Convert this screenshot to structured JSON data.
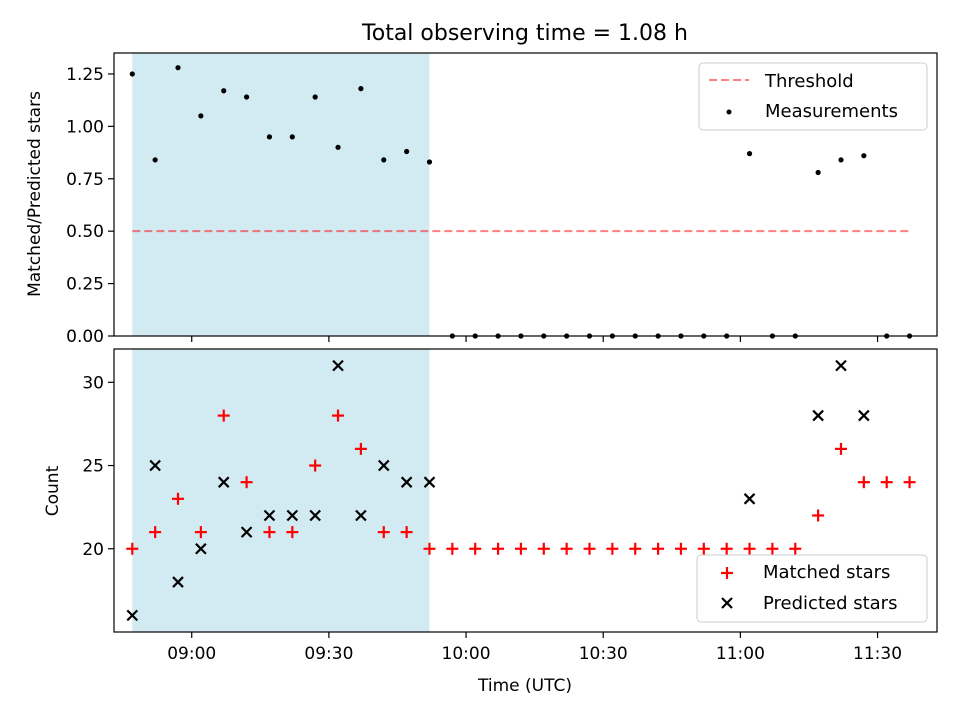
{
  "figure": {
    "title": "Total observing time = 1.08 h",
    "xlabel": "Time (UTC)"
  },
  "colors": {
    "span": "#add8e6",
    "threshold": "#ff0000",
    "measurement": "#000000",
    "matched": "#ff0000",
    "predicted": "#000000"
  },
  "chart_data": [
    {
      "type": "scatter",
      "panel": "top",
      "ylabel": "Matched/Predicted stars",
      "ylim": [
        0,
        1.35
      ],
      "yticks": [
        0,
        0.25,
        0.5,
        0.75,
        1.0,
        1.25
      ],
      "ytick_labels": [
        "0.00",
        "0.25",
        "0.50",
        "0.75",
        "1.00",
        "1.25"
      ],
      "xlim": [
        "08:43",
        "11:43"
      ],
      "shaded_span": [
        "08:47",
        "09:52"
      ],
      "threshold": {
        "name": "Threshold",
        "y": 0.5,
        "x": [
          "08:47",
          "11:37"
        ],
        "style": "dashed"
      },
      "series": [
        {
          "name": "Measurements",
          "marker": "dot",
          "x": [
            "08:47",
            "08:52",
            "08:57",
            "09:02",
            "09:07",
            "09:12",
            "09:17",
            "09:22",
            "09:27",
            "09:32",
            "09:37",
            "09:42",
            "09:47",
            "09:52",
            "09:57",
            "10:02",
            "10:07",
            "10:12",
            "10:17",
            "10:22",
            "10:27",
            "10:32",
            "10:37",
            "10:42",
            "10:47",
            "10:52",
            "10:57",
            "11:02",
            "11:07",
            "11:12",
            "11:17",
            "11:22",
            "11:27",
            "11:32",
            "11:37"
          ],
          "y": [
            1.25,
            0.84,
            1.28,
            1.05,
            1.17,
            1.14,
            0.95,
            0.95,
            1.14,
            0.9,
            1.18,
            0.84,
            0.88,
            0.83,
            0,
            0,
            0,
            0,
            0,
            0,
            0,
            0,
            0,
            0,
            0,
            0,
            0,
            0.87,
            0,
            0,
            0.78,
            0.84,
            0.86,
            0,
            0
          ]
        }
      ],
      "legend": {
        "placement": "upper-right",
        "entries": [
          "Threshold",
          "Measurements"
        ]
      }
    },
    {
      "type": "scatter",
      "panel": "bottom",
      "ylabel": "Count",
      "ylim": [
        15,
        32
      ],
      "yticks": [
        20,
        25,
        30
      ],
      "ytick_labels": [
        "20",
        "25",
        "30"
      ],
      "xlim": [
        "08:43",
        "11:43"
      ],
      "xticks": [
        "09:00",
        "09:30",
        "10:00",
        "10:30",
        "11:00",
        "11:30"
      ],
      "shaded_span": [
        "08:47",
        "09:52"
      ],
      "series": [
        {
          "name": "Matched stars",
          "marker": "plus",
          "x": [
            "08:47",
            "08:52",
            "08:57",
            "09:02",
            "09:07",
            "09:12",
            "09:17",
            "09:22",
            "09:27",
            "09:32",
            "09:37",
            "09:42",
            "09:47",
            "09:52",
            "09:57",
            "10:02",
            "10:07",
            "10:12",
            "10:17",
            "10:22",
            "10:27",
            "10:32",
            "10:37",
            "10:42",
            "10:47",
            "10:52",
            "10:57",
            "11:02",
            "11:07",
            "11:12",
            "11:17",
            "11:22",
            "11:27",
            "11:32",
            "11:37"
          ],
          "y": [
            20,
            21,
            23,
            21,
            28,
            24,
            21,
            21,
            25,
            28,
            26,
            21,
            21,
            20,
            20,
            20,
            20,
            20,
            20,
            20,
            20,
            20,
            20,
            20,
            20,
            20,
            20,
            20,
            20,
            20,
            22,
            26,
            24,
            24,
            24
          ]
        },
        {
          "name": "Predicted stars",
          "marker": "x",
          "x": [
            "08:47",
            "08:52",
            "08:57",
            "09:02",
            "09:07",
            "09:12",
            "09:17",
            "09:22",
            "09:27",
            "09:32",
            "09:37",
            "09:42",
            "09:47",
            "09:52",
            "11:02",
            "11:17",
            "11:22",
            "11:27"
          ],
          "y": [
            16,
            25,
            18,
            20,
            24,
            21,
            22,
            22,
            22,
            31,
            22,
            25,
            24,
            24,
            23,
            28,
            31,
            28
          ]
        }
      ],
      "legend": {
        "placement": "lower-right",
        "entries": [
          "Matched stars",
          "Predicted stars"
        ]
      }
    }
  ]
}
